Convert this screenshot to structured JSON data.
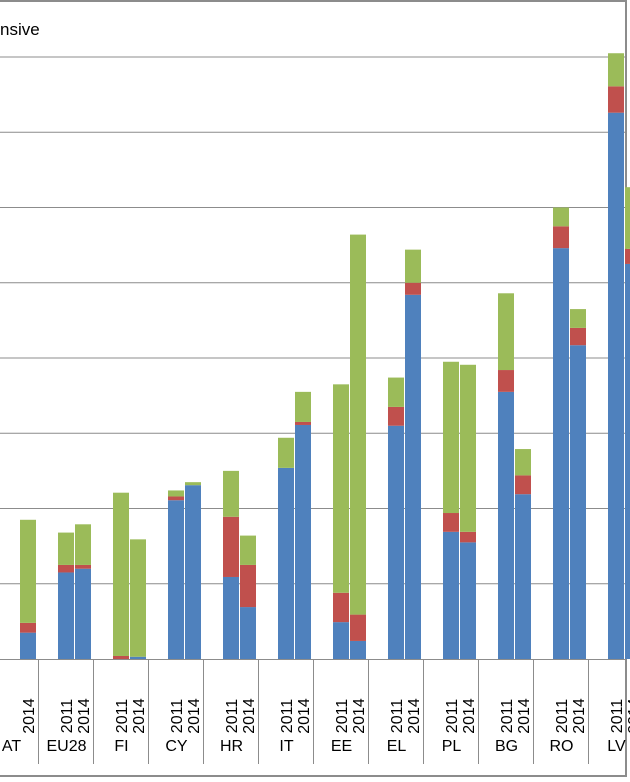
{
  "chart_data": {
    "type": "bar",
    "stacked": true,
    "title": "nsive",
    "years": [
      "2011",
      "2014"
    ],
    "countries": [
      "AT",
      "EU28",
      "FI",
      "CY",
      "HR",
      "IT",
      "EE",
      "EL",
      "PL",
      "BG",
      "RO",
      "LV"
    ],
    "country_labels": [
      "AT",
      "EU28",
      "FI",
      "CY",
      "HR",
      "IT",
      "EE",
      "EL",
      "PL",
      "BG",
      "RO",
      "LV"
    ],
    "series_colors": [
      "#4f81bd",
      "#c0504d",
      "#9bbb59"
    ],
    "ylim": [
      0,
      80
    ],
    "gridlines": [
      10,
      20,
      30,
      40,
      50,
      60,
      70,
      80
    ],
    "grid": true,
    "legend": "none",
    "stacks": [
      {
        "country": "AT",
        "year": "2014",
        "values": [
          3.5,
          1.3,
          13.7
        ]
      },
      {
        "country": "EU28",
        "year": "2011",
        "values": [
          11.5,
          1.0,
          4.3
        ]
      },
      {
        "country": "EU28",
        "year": "2014",
        "values": [
          12.0,
          0.5,
          5.4
        ]
      },
      {
        "country": "FI",
        "year": "2011",
        "values": [
          0,
          0.4,
          21.7
        ]
      },
      {
        "country": "FI",
        "year": "2014",
        "values": [
          0.3,
          0,
          15.6
        ]
      },
      {
        "country": "CY",
        "year": "2011",
        "values": [
          21.1,
          0.5,
          0.8
        ]
      },
      {
        "country": "CY",
        "year": "2014",
        "values": [
          23.1,
          0,
          0.4
        ]
      },
      {
        "country": "HR",
        "year": "2011",
        "values": [
          10.9,
          8.0,
          6.1
        ]
      },
      {
        "country": "HR",
        "year": "2014",
        "values": [
          6.9,
          5.6,
          3.9
        ]
      },
      {
        "country": "IT",
        "year": "2011",
        "values": [
          25.4,
          0,
          4.0
        ]
      },
      {
        "country": "IT",
        "year": "2014",
        "values": [
          31.1,
          0.4,
          4.0
        ]
      },
      {
        "country": "EE",
        "year": "2011",
        "values": [
          4.9,
          3.9,
          27.7
        ]
      },
      {
        "country": "EE",
        "year": "2014",
        "values": [
          2.4,
          3.5,
          50.5
        ]
      },
      {
        "country": "EL",
        "year": "2011",
        "values": [
          31.0,
          2.5,
          3.9
        ]
      },
      {
        "country": "EL",
        "year": "2014",
        "values": [
          48.4,
          1.6,
          4.4
        ]
      },
      {
        "country": "PL",
        "year": "2011",
        "values": [
          16.9,
          2.5,
          20.1
        ]
      },
      {
        "country": "PL",
        "year": "2014",
        "values": [
          15.5,
          1.4,
          22.2
        ]
      },
      {
        "country": "BG",
        "year": "2011",
        "values": [
          35.5,
          2.9,
          10.2
        ]
      },
      {
        "country": "BG",
        "year": "2014",
        "values": [
          21.9,
          2.5,
          3.5
        ]
      },
      {
        "country": "RO",
        "year": "2011",
        "values": [
          54.6,
          2.9,
          2.5
        ]
      },
      {
        "country": "RO",
        "year": "2014",
        "values": [
          41.7,
          2.3,
          2.5
        ]
      },
      {
        "country": "LV",
        "year": "2011",
        "values": [
          72.6,
          3.5,
          4.4
        ]
      },
      {
        "country": "LV",
        "year": "2014",
        "values": [
          52.5,
          2.0,
          8.2
        ]
      }
    ]
  }
}
